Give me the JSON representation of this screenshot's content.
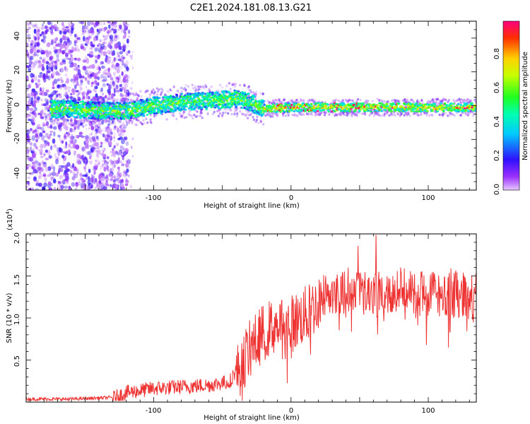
{
  "title": "C2E1.2024.181.08.13.G21",
  "top_panel": {
    "xlabel": "Height of straight line (km)",
    "ylabel": "Frequency (Hz)",
    "colorbar_label": "Normalized spectral amplitude",
    "colorbar_ticks": [
      "0.0",
      "0.2",
      "0.4",
      "0.6",
      "0.8"
    ],
    "x_ticks": [
      "-100",
      "0",
      "100"
    ],
    "y_ticks": [
      "40",
      "20",
      "0",
      "-20",
      "-40"
    ]
  },
  "bottom_panel": {
    "xlabel": "Height of straight line (km)",
    "ylabel": "SNR (10 * v/v)",
    "y_multiplier": "(x10",
    "y_multiplier_exp": "4",
    "y_multiplier_close": ")",
    "x_ticks": [
      "-100",
      "0",
      "100"
    ],
    "y_ticks": [
      "2.0",
      "1.5",
      "1.0",
      "0.5"
    ]
  },
  "chart_data": [
    {
      "type": "heatmap",
      "xlabel": "Height of straight line (km)",
      "ylabel": "Frequency (Hz)",
      "xlim": [
        -193,
        135
      ],
      "ylim": [
        -50,
        50
      ],
      "colormap": "rainbow (purple=0 to red=1)",
      "zlim": [
        0,
        1
      ],
      "colorbar_label": "Normalized spectral amplitude",
      "grid": false,
      "ridge": {
        "x": [
          -160,
          -140,
          -120,
          -100,
          -80,
          -60,
          -40,
          -30,
          -20,
          0,
          20,
          40,
          60,
          80,
          100,
          120,
          135
        ],
        "frequency": [
          -2,
          -3,
          -3,
          0,
          2,
          3,
          4,
          2,
          -2,
          -1,
          -1,
          -1,
          -1,
          -1,
          -1,
          -1,
          -1
        ]
      }
    },
    {
      "type": "line",
      "xlabel": "Height of straight line (km)",
      "ylabel": "SNR (10 * v/v)",
      "y_multiplier": "x10^4",
      "xlim": [
        -193,
        135
      ],
      "ylim": [
        0,
        20000
      ],
      "color": "#ee3333",
      "grid": false,
      "envelope": {
        "x": [
          -193,
          -160,
          -130,
          -120,
          -100,
          -80,
          -60,
          -45,
          -40,
          -30,
          -20,
          -10,
          0,
          10,
          20,
          25,
          40,
          60,
          80,
          100,
          120,
          135
        ],
        "y": [
          400,
          400,
          600,
          1300,
          1800,
          2000,
          2200,
          2600,
          4000,
          7000,
          9000,
          10000,
          10000,
          11000,
          12500,
          13500,
          14000,
          14000,
          13800,
          13500,
          13500,
          13000
        ]
      }
    }
  ]
}
